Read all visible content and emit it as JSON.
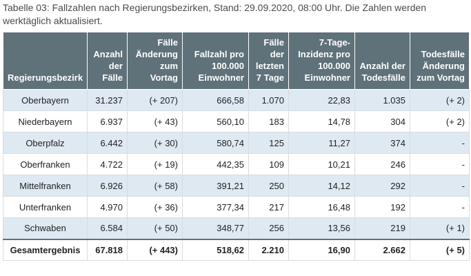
{
  "caption": "Tabelle 03: Fallzahlen nach Regierungsbezirken, Stand: 29.09.2020, 08:00 Uhr. Die Zahlen werden werktäglich aktualisiert.",
  "table": {
    "headers": [
      "Regierungsbezirk",
      "Anzahl der Fälle",
      "Fälle Änderung zum Vortag",
      "Fallzahl pro 100.000 Einwohner",
      "Fälle der letzten 7 Tage",
      "7-Tage-Inzidenz pro 100.000 Einwohner",
      "Anzahl der Todesfälle",
      "Todesfälle Änderung zum Vortag"
    ],
    "rows": [
      [
        "Oberbayern",
        "31.237",
        "(+ 207)",
        "666,58",
        "1.070",
        "22,83",
        "1.035",
        "(+ 2)"
      ],
      [
        "Niederbayern",
        "6.937",
        "(+ 43)",
        "560,10",
        "183",
        "14,78",
        "304",
        "(+ 2)"
      ],
      [
        "Oberpfalz",
        "6.442",
        "(+ 30)",
        "580,74",
        "125",
        "11,27",
        "374",
        "-"
      ],
      [
        "Oberfranken",
        "4.722",
        "(+ 19)",
        "442,35",
        "109",
        "10,21",
        "246",
        "-"
      ],
      [
        "Mittelfranken",
        "6.926",
        "(+ 58)",
        "391,21",
        "250",
        "14,12",
        "292",
        "-"
      ],
      [
        "Unterfranken",
        "4.970",
        "(+ 36)",
        "377,34",
        "217",
        "16,48",
        "192",
        "-"
      ],
      [
        "Schwaben",
        "6.584",
        "(+ 50)",
        "348,77",
        "256",
        "13,56",
        "219",
        "(+ 1)"
      ]
    ],
    "total": [
      "Gesamtergebnis",
      "67.818",
      "(+ 443)",
      "518,62",
      "2.210",
      "16,90",
      "2.662",
      "(+ 5)"
    ]
  },
  "colors": {
    "header_bg": "#5f7179",
    "row_alt_bg": "#dfe9f2"
  }
}
